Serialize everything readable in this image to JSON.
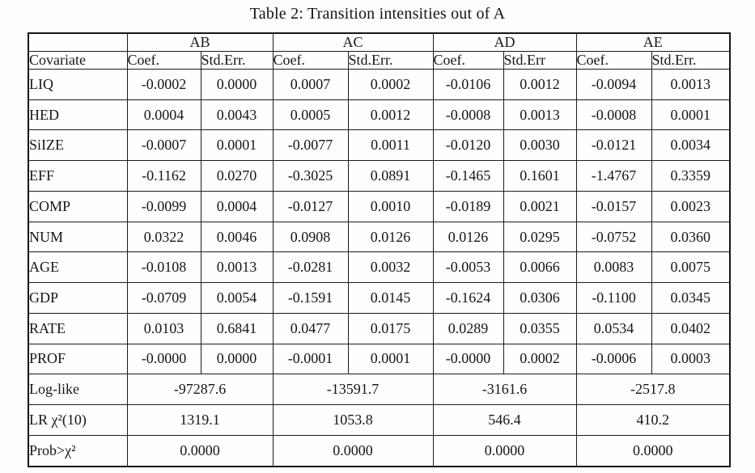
{
  "caption": "Table 2: Transition intensities out of A",
  "colors": {
    "background": "#fdfdfd",
    "text": "#161616",
    "border": "#1c1c1c"
  },
  "table": {
    "groups": [
      "AB",
      "AC",
      "AD",
      "AE"
    ],
    "covariate_header": "Covariate",
    "sub_headers": [
      "Coef.",
      "Std.Err.",
      "Coef.",
      "Std.Err.",
      "Coef.",
      "Std.Err",
      "Coef.",
      "Std.Err."
    ],
    "rows": [
      {
        "covariate": "LIQ",
        "values": [
          "-0.0002",
          "0.0000",
          "0.0007",
          "0.0002",
          "-0.0106",
          "0.0012",
          "-0.0094",
          "0.0013"
        ]
      },
      {
        "covariate": "HED",
        "values": [
          "0.0004",
          "0.0043",
          "0.0005",
          "0.0012",
          "-0.0008",
          "0.0013",
          "-0.0008",
          "0.0001"
        ]
      },
      {
        "covariate": "SiIZE",
        "values": [
          "-0.0007",
          "0.0001",
          "-0.0077",
          "0.0011",
          "-0.0120",
          "0.0030",
          "-0.0121",
          "0.0034"
        ]
      },
      {
        "covariate": "EFF",
        "values": [
          "-0.1162",
          "0.0270",
          "-0.3025",
          "0.0891",
          "-0.1465",
          "0.1601",
          "-1.4767",
          "0.3359"
        ]
      },
      {
        "covariate": "COMP",
        "values": [
          "-0.0099",
          "0.0004",
          "-0.0127",
          "0.0010",
          "-0.0189",
          "0.0021",
          "-0.0157",
          "0.0023"
        ]
      },
      {
        "covariate": "NUM",
        "values": [
          "0.0322",
          "0.0046",
          "0.0908",
          "0.0126",
          "0.0126",
          "0.0295",
          "-0.0752",
          "0.0360"
        ]
      },
      {
        "covariate": "AGE",
        "values": [
          "-0.0108",
          "0.0013",
          "-0.0281",
          "0.0032",
          "-0.0053",
          "0.0066",
          "0.0083",
          "0.0075"
        ]
      },
      {
        "covariate": "GDP",
        "values": [
          "-0.0709",
          "0.0054",
          "-0.1591",
          "0.0145",
          "-0.1624",
          "0.0306",
          "-0.1100",
          "0.0345"
        ]
      },
      {
        "covariate": "RATE",
        "values": [
          "0.0103",
          "0.6841",
          "0.0477",
          "0.0175",
          "0.0289",
          "0.0355",
          "0.0534",
          "0.0402"
        ]
      },
      {
        "covariate": "PROF",
        "values": [
          "-0.0000",
          "0.0000",
          "-0.0001",
          "0.0001",
          "-0.0000",
          "0.0002",
          "-0.0006",
          "0.0003"
        ]
      }
    ],
    "summary_rows": [
      {
        "label": "Log-like",
        "values": [
          "-97287.6",
          "-13591.7",
          "-3161.6",
          "-2517.8"
        ]
      },
      {
        "label": "LR χ²(10)",
        "values": [
          "1319.1",
          "1053.8",
          "546.4",
          "410.2"
        ]
      },
      {
        "label": "Prob>χ²",
        "values": [
          "0.0000",
          "0.0000",
          "0.0000",
          "0.0000"
        ]
      }
    ]
  }
}
